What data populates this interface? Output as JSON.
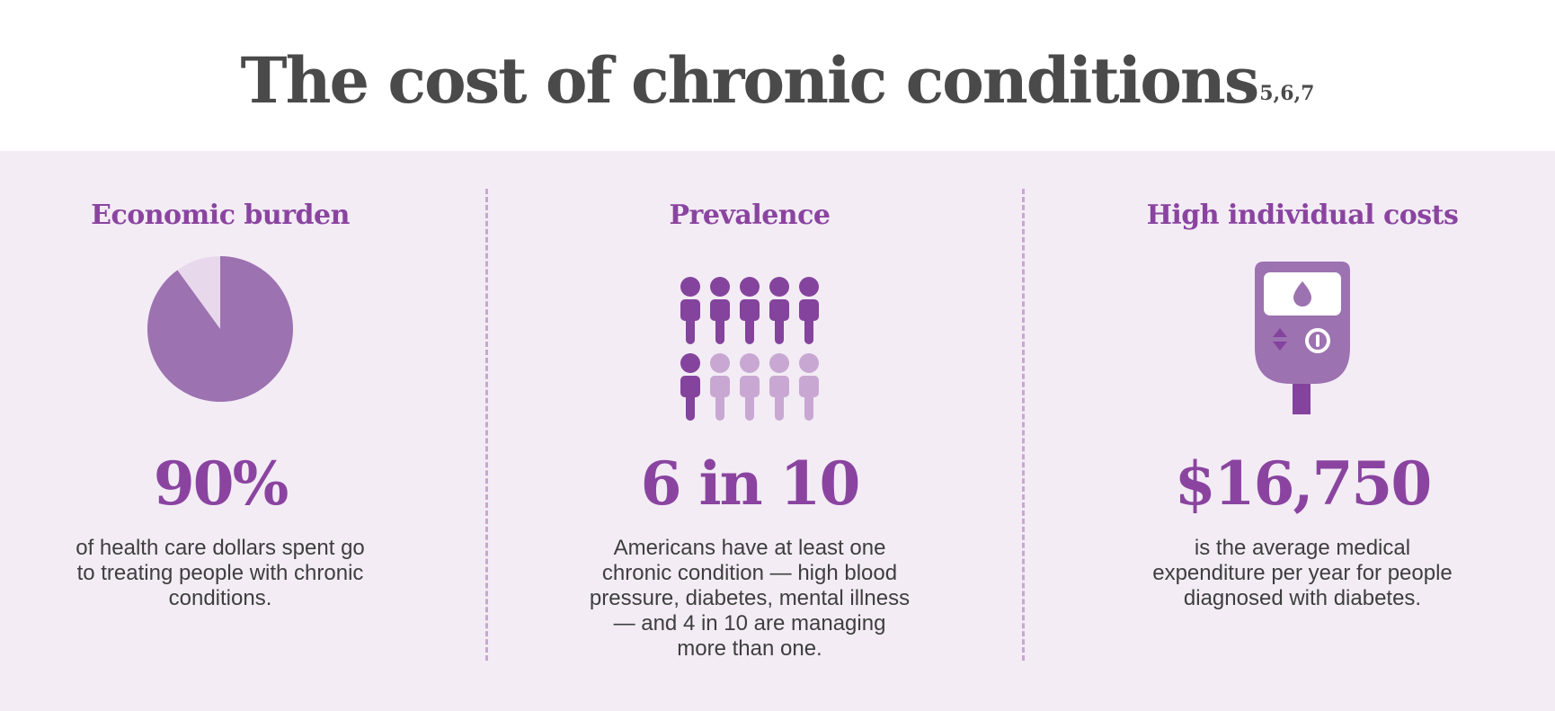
{
  "header": {
    "title": "The cost of chronic conditions",
    "footnote": "5,6,7"
  },
  "columns": [
    {
      "heading": "Economic burden",
      "stat": "90%",
      "description": "of health care dollars spent go to treating people with chronic conditions."
    },
    {
      "heading": "Prevalence",
      "stat": "6 in 10",
      "description": "Americans have at least one chronic condition — high blood pressure, diabetes, mental illness — and 4 in 10 are managing more than one."
    },
    {
      "heading": "High individual costs",
      "stat": "$16,750",
      "description": "is the average medical expenditure per year for people diagnosed with diabetes."
    }
  ],
  "pie": {
    "percent": 90
  },
  "people": {
    "total": 10,
    "highlighted": 6
  },
  "colors": {
    "accent": "#8a44a0",
    "pie_main": "#9d72b1",
    "pie_rest": "#e8d8ec",
    "people_dark": "#84439c",
    "people_light": "#c8a8d2",
    "meter": "#9d72b1",
    "title": "#4a4a4a",
    "panel_bg": "#f3ecf5"
  },
  "icons": [
    "pie-chart-icon",
    "person-icon",
    "glucose-meter-icon",
    "blood-drop-icon"
  ]
}
